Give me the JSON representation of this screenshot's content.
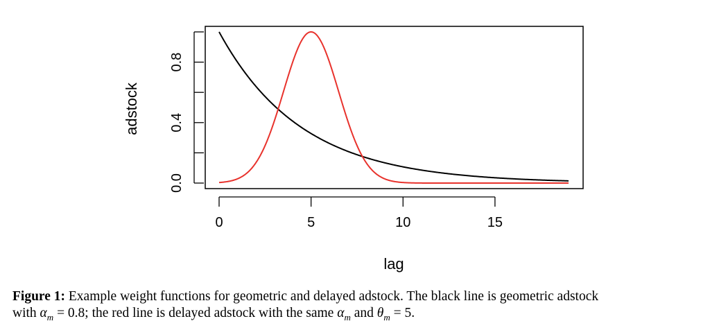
{
  "chart_data": {
    "type": "line",
    "xlabel": "lag",
    "ylabel": "adstock",
    "xlim": [
      0,
      19
    ],
    "ylim": [
      0,
      1
    ],
    "x_ticks": [
      "0",
      "5",
      "10",
      "15"
    ],
    "x_tick_values": [
      0,
      5,
      10,
      15
    ],
    "y_ticks": [
      "0.0",
      "0.4",
      "0.8"
    ],
    "y_tick_values": [
      0.0,
      0.4,
      0.8
    ],
    "y_minor_tick_values": [
      0.2,
      0.6,
      1.0
    ],
    "grid": false,
    "series": [
      {
        "name": "geometric adstock",
        "color": "#000000",
        "x": [
          0,
          1,
          2,
          3,
          4,
          5,
          6,
          7,
          8,
          9,
          10,
          11,
          12,
          13,
          14,
          15,
          16,
          17,
          18,
          19
        ],
        "y": [
          1.0,
          0.8,
          0.64,
          0.512,
          0.41,
          0.328,
          0.262,
          0.21,
          0.168,
          0.134,
          0.107,
          0.086,
          0.069,
          0.055,
          0.044,
          0.035,
          0.028,
          0.023,
          0.018,
          0.014
        ]
      },
      {
        "name": "delayed adstock",
        "color": "#e8322c",
        "x": [
          0,
          1,
          2,
          3,
          4,
          5,
          6,
          7,
          8,
          9,
          10,
          11,
          12,
          13,
          14,
          15,
          16,
          17,
          18,
          19
        ],
        "y": [
          0.007,
          0.03,
          0.168,
          0.41,
          0.8,
          1.0,
          0.8,
          0.41,
          0.168,
          0.03,
          0.007,
          0.0,
          0.0,
          0.0,
          0.0,
          0.0,
          0.0,
          0.0,
          0.0,
          0.0
        ]
      }
    ]
  },
  "caption": {
    "label": "Figure 1:",
    "line1": "Example weight functions for geometric and delayed adstock. The black line is geometric adstock",
    "with": "with ",
    "alpha": "α",
    "sub_m": "m",
    "eq_08": " = 0.8; the red line is delayed adstock with the same ",
    "and": " and ",
    "theta": "θ",
    "eq_5": " = 5."
  }
}
